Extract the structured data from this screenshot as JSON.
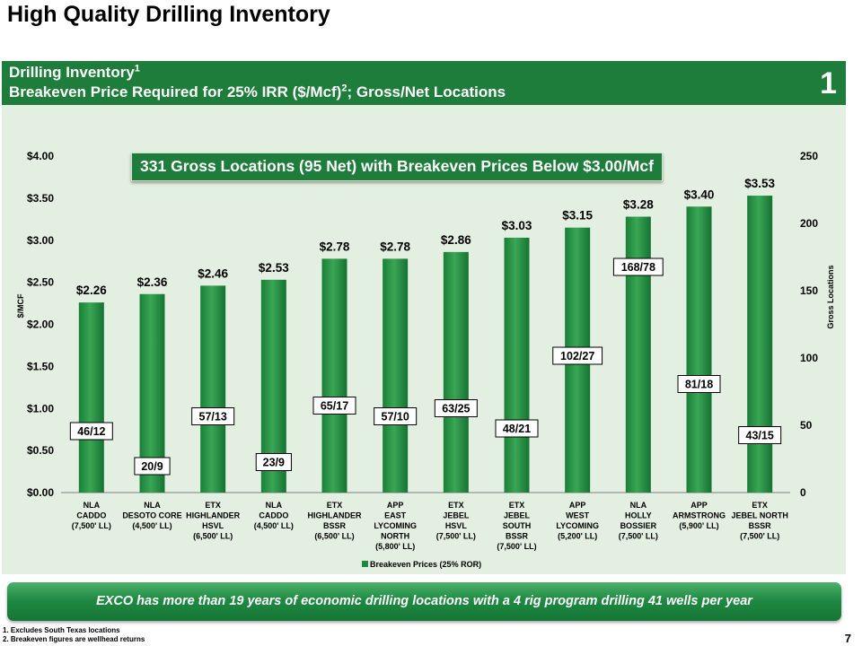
{
  "title": "High Quality Drilling Inventory",
  "banner": {
    "line1": "Drilling Inventory",
    "line1_sup": "1",
    "line2_a": "Breakeven Price Required for 25% IRR ($/Mcf)",
    "line2_sup": "2",
    "line2_b": "; Gross/Net Locations",
    "number": "1"
  },
  "callout": "331 Gross Locations (95 Net) with Breakeven Prices Below $3.00/Mcf",
  "footer_banner": "EXCO has more than 19 years of economic drilling locations with a 4 rig program drilling 41 wells per year",
  "footnotes": [
    "1.   Excludes South Texas locations",
    "2.   Breakeven figures are wellhead returns"
  ],
  "page_number": "7",
  "colors": {
    "bar": "#1e8a3e",
    "bar_highlight": "#3aa655",
    "banner": "#1e7d3b",
    "chart_bg": "#e3efe0"
  },
  "chart_data": {
    "type": "bar",
    "ylabel": "$/MCF",
    "y2label": "Gross Locations",
    "ylim": [
      0,
      4
    ],
    "y2lim": [
      0,
      250
    ],
    "yticks": [
      "$0.00",
      "$0.50",
      "$1.00",
      "$1.50",
      "$2.00",
      "$2.50",
      "$3.00",
      "$3.50",
      "$4.00"
    ],
    "y2ticks": [
      "0",
      "50",
      "100",
      "150",
      "200",
      "250"
    ],
    "legend": "Breakeven Prices (25% ROR)",
    "legend_position": "bottom",
    "categories": [
      [
        "NLA",
        "CADDO",
        "(7,500' LL)"
      ],
      [
        "NLA",
        "DESOTO CORE",
        "(4,500' LL)"
      ],
      [
        "ETX",
        "HIGHLANDER",
        "HSVL",
        "(6,500' LL)"
      ],
      [
        "NLA",
        "CADDO",
        "(4,500' LL)"
      ],
      [
        "ETX",
        "HIGHLANDER",
        "BSSR",
        "(6,500' LL)"
      ],
      [
        "APP",
        "EAST",
        "LYCOMING",
        "NORTH",
        "(5,800' LL)"
      ],
      [
        "ETX",
        "JEBEL",
        "HSVL",
        "(7,500' LL)"
      ],
      [
        "ETX",
        "JEBEL",
        "SOUTH",
        "BSSR",
        "(7,500' LL)"
      ],
      [
        "APP",
        "WEST",
        "LYCOMING",
        "(5,200' LL)"
      ],
      [
        "NLA",
        "HOLLY",
        "BOSSIER",
        "(7,500' LL)"
      ],
      [
        "APP",
        "ARMSTRONG",
        "(5,900' LL)"
      ],
      [
        "ETX",
        "JEBEL NORTH",
        "BSSR",
        "(7,500' LL)"
      ]
    ],
    "values": [
      2.26,
      2.36,
      2.46,
      2.53,
      2.78,
      2.78,
      2.86,
      3.03,
      3.15,
      3.28,
      3.4,
      3.53
    ],
    "value_labels": [
      "$2.26",
      "$2.36",
      "$2.46",
      "$2.53",
      "$2.78",
      "$2.78",
      "$2.86",
      "$3.03",
      "$3.15",
      "$3.28",
      "$3.40",
      "$3.53"
    ],
    "locations": [
      "46/12",
      "20/9",
      "57/13",
      "23/9",
      "65/17",
      "57/10",
      "63/25",
      "48/21",
      "102/27",
      "168/78",
      "81/18",
      "43/15"
    ],
    "gross_locations": [
      46,
      20,
      57,
      23,
      65,
      57,
      63,
      48,
      102,
      168,
      81,
      43
    ]
  }
}
